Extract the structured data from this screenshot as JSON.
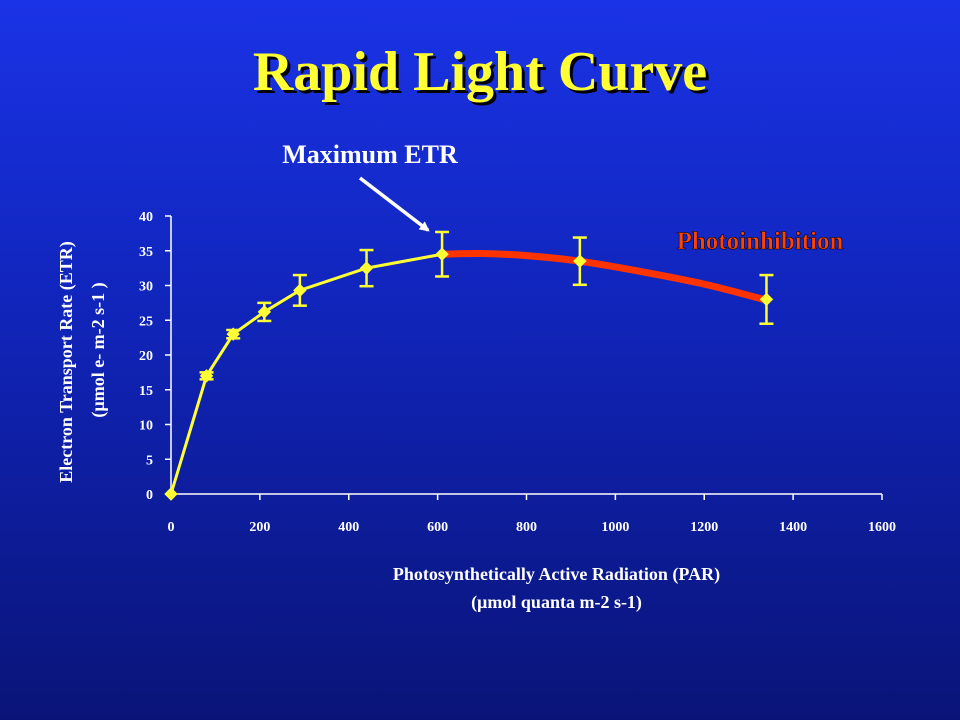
{
  "slide": {
    "title": "Rapid Light Curve"
  },
  "colors": {
    "title": "#ffff33",
    "curve": "#ffff33",
    "inhibition": "#ff3300",
    "text": "#ffffff",
    "axis": "#ffffff"
  },
  "chart_data": {
    "type": "line",
    "title": "",
    "xlabel_lines": [
      "Photosynthetically Active Radiation (PAR)",
      "(µmol quanta m-2 s-1)"
    ],
    "ylabel_lines": [
      "Electron Transport Rate (ETR)",
      "(µmol e- m-2 s-1 )"
    ],
    "xlim": [
      0,
      1600
    ],
    "ylim": [
      0,
      40
    ],
    "xticks": [
      0,
      200,
      400,
      600,
      800,
      1000,
      1200,
      1400,
      1600
    ],
    "yticks": [
      0,
      5,
      10,
      15,
      20,
      25,
      30,
      35,
      40
    ],
    "grid": false,
    "series": [
      {
        "x": [
          0,
          80,
          140,
          210,
          290,
          440,
          610,
          920,
          1340
        ],
        "y": [
          0,
          17,
          23,
          26.2,
          29.3,
          32.5,
          34.5,
          33.5,
          28
        ],
        "error": [
          0,
          0.5,
          0.6,
          1.3,
          2.2,
          2.6,
          3.2,
          3.4,
          3.5
        ]
      }
    ],
    "fit_curve": {
      "x": [
        610,
        700,
        800,
        920,
        1050,
        1200,
        1340
      ],
      "y": [
        34.5,
        34.6,
        34.3,
        33.5,
        32.1,
        30.2,
        27.9
      ]
    },
    "annotations": [
      {
        "text": "Maximum ETR",
        "x": 610,
        "y": 34.5
      },
      {
        "text": "Photoinhibition",
        "x": 1000,
        "y": 36.5
      }
    ]
  }
}
